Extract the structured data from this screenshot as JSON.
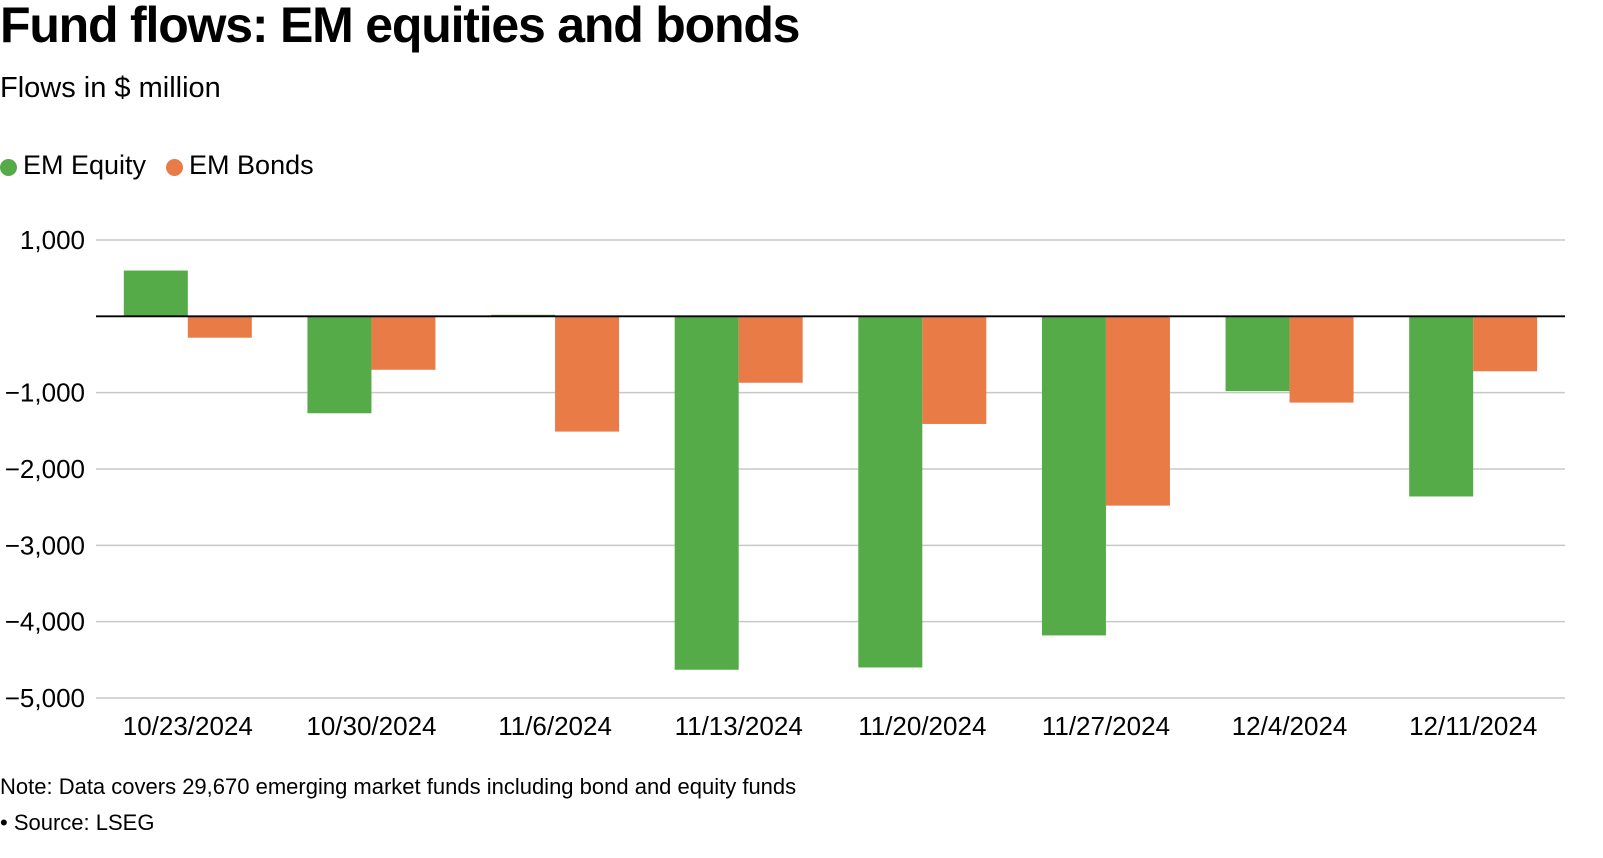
{
  "title": "Fund flows: EM equities and bonds",
  "subtitle": "Flows in $ million",
  "note": "Note: Data covers 29,670 emerging market funds including bond and equity funds",
  "source": "• Source: LSEG",
  "chart_data": {
    "type": "bar",
    "categories": [
      "10/23/2024",
      "10/30/2024",
      "11/6/2024",
      "11/13/2024",
      "11/20/2024",
      "11/27/2024",
      "12/4/2024",
      "12/11/2024"
    ],
    "series": [
      {
        "name": "EM Equity",
        "color": "#55ab47",
        "values": [
          600,
          -1270,
          20,
          -4630,
          -4600,
          -4180,
          -980,
          -2360
        ]
      },
      {
        "name": "EM Bonds",
        "color": "#e97b47",
        "values": [
          -280,
          -700,
          -1510,
          -870,
          -1410,
          -2480,
          -1130,
          -720
        ]
      }
    ],
    "yticks": [
      1000,
      0,
      -1000,
      -2000,
      -3000,
      -4000,
      -5000
    ],
    "ytick_labels": [
      "1,000",
      "",
      "−1,000",
      "−2,000",
      "−3,000",
      "−4,000",
      "−5,000"
    ],
    "ylim": [
      -5000,
      1000
    ],
    "grid": true,
    "legend_position": "top-left",
    "xlabel": "",
    "ylabel": ""
  }
}
